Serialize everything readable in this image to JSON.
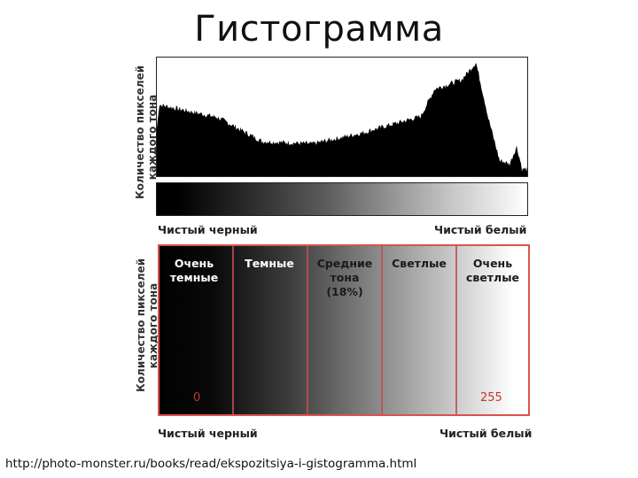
{
  "title": "Гистограмма",
  "histogram": {
    "y_axis_label_line1": "Количество пикселей",
    "y_axis_label_line2": "каждого тона",
    "left_caption": "Чистый черный",
    "right_caption": "Чистый белый"
  },
  "zones": {
    "y_axis_label_line1": "Количество пикселей",
    "y_axis_label_line2": "каждого тона",
    "items": [
      {
        "line1": "Очень",
        "line2": "темные",
        "line3": ""
      },
      {
        "line1": "Темные",
        "line2": "",
        "line3": ""
      },
      {
        "line1": "Средние",
        "line2": "тона",
        "line3": "(18%)"
      },
      {
        "line1": "Светлые",
        "line2": "",
        "line3": ""
      },
      {
        "line1": "Очень",
        "line2": "светлые",
        "line3": ""
      }
    ],
    "min_value": "0",
    "max_value": "255",
    "left_caption": "Чистый черный",
    "right_caption": "Чистый белый"
  },
  "source_url": "http://photo-monster.ru/books/read/ekspozitsiya-i-gistogramma.html",
  "colors": {
    "zone_border": "#d9534f",
    "number_text": "#c0392b",
    "histogram_fill": "#000000"
  }
}
